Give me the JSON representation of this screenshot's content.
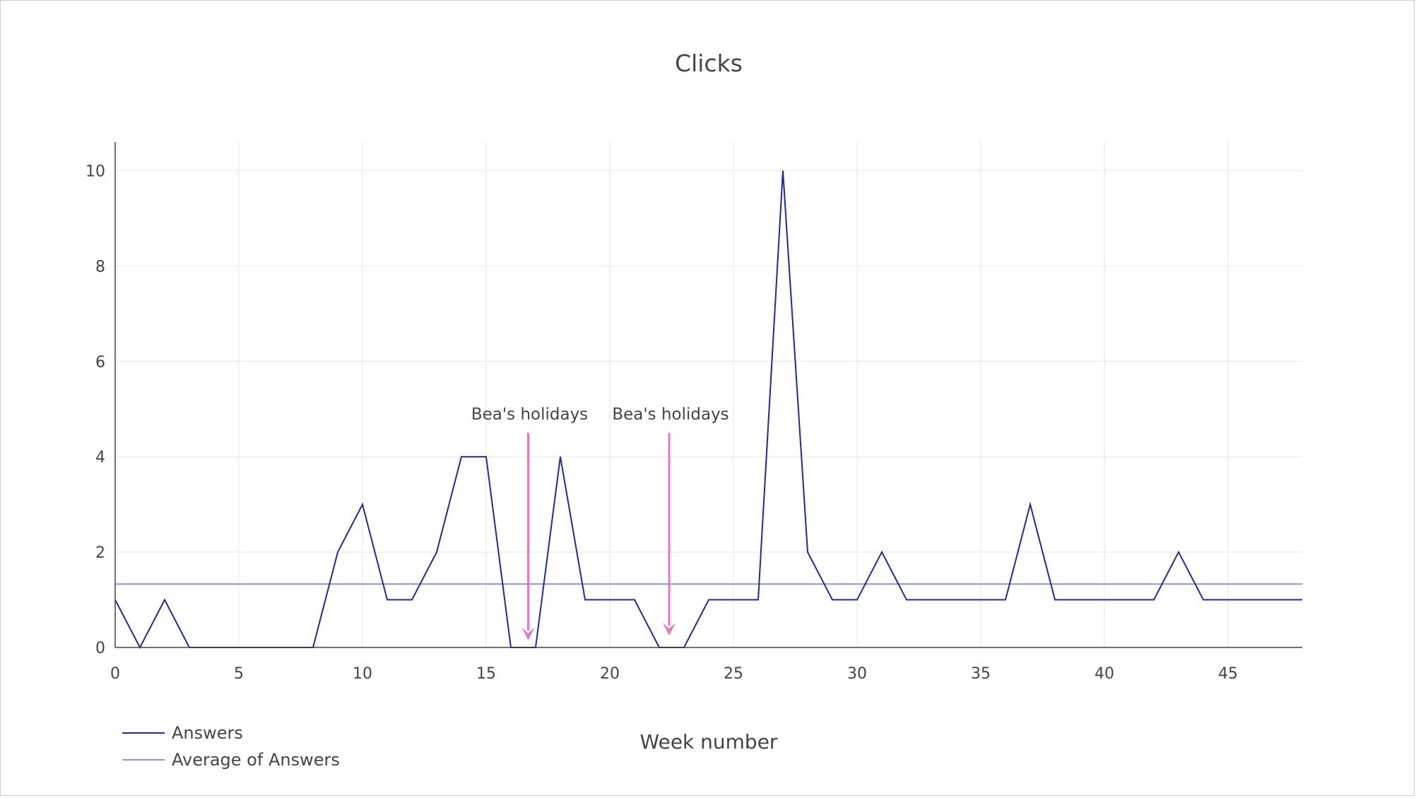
{
  "chart_data": {
    "type": "line",
    "title": "Clicks",
    "xlabel": "Week number",
    "ylabel": "",
    "xlim": [
      0,
      48
    ],
    "ylim": [
      0,
      10.6
    ],
    "x_ticks": [
      0,
      5,
      10,
      15,
      20,
      25,
      30,
      35,
      40,
      45
    ],
    "y_ticks": [
      0,
      2,
      4,
      6,
      8,
      10
    ],
    "grid": true,
    "legend_position": "bottom-left",
    "x": [
      0,
      1,
      2,
      3,
      4,
      5,
      6,
      7,
      8,
      9,
      10,
      11,
      12,
      13,
      14,
      15,
      16,
      17,
      18,
      19,
      20,
      21,
      22,
      23,
      24,
      25,
      26,
      27,
      28,
      29,
      30,
      31,
      32,
      33,
      34,
      35,
      36,
      37,
      38,
      39,
      40,
      41,
      42,
      43,
      44,
      45,
      46,
      47,
      48
    ],
    "series": [
      {
        "name": "Answers",
        "color": "#1f2a9e",
        "values": [
          1,
          0,
          1,
          0,
          0,
          0,
          0,
          0,
          0,
          2,
          3,
          1,
          1,
          2,
          4,
          4,
          0,
          0,
          4,
          1,
          1,
          1,
          0,
          0,
          1,
          1,
          1,
          10,
          2,
          1,
          1,
          2,
          1,
          1,
          1,
          1,
          1,
          3,
          1,
          1,
          1,
          1,
          1,
          2,
          1,
          1,
          1,
          1,
          1
        ]
      },
      {
        "name": "Average of Answers",
        "color": "#8e95d8",
        "constant": 1.33
      }
    ],
    "annotations": [
      {
        "text": "Bea's holidays",
        "x": 16.7,
        "y": 0.15,
        "color": "#e377c2"
      },
      {
        "text": "Bea's holidays",
        "x": 22.4,
        "y": 0.25,
        "color": "#e377c2"
      }
    ]
  }
}
